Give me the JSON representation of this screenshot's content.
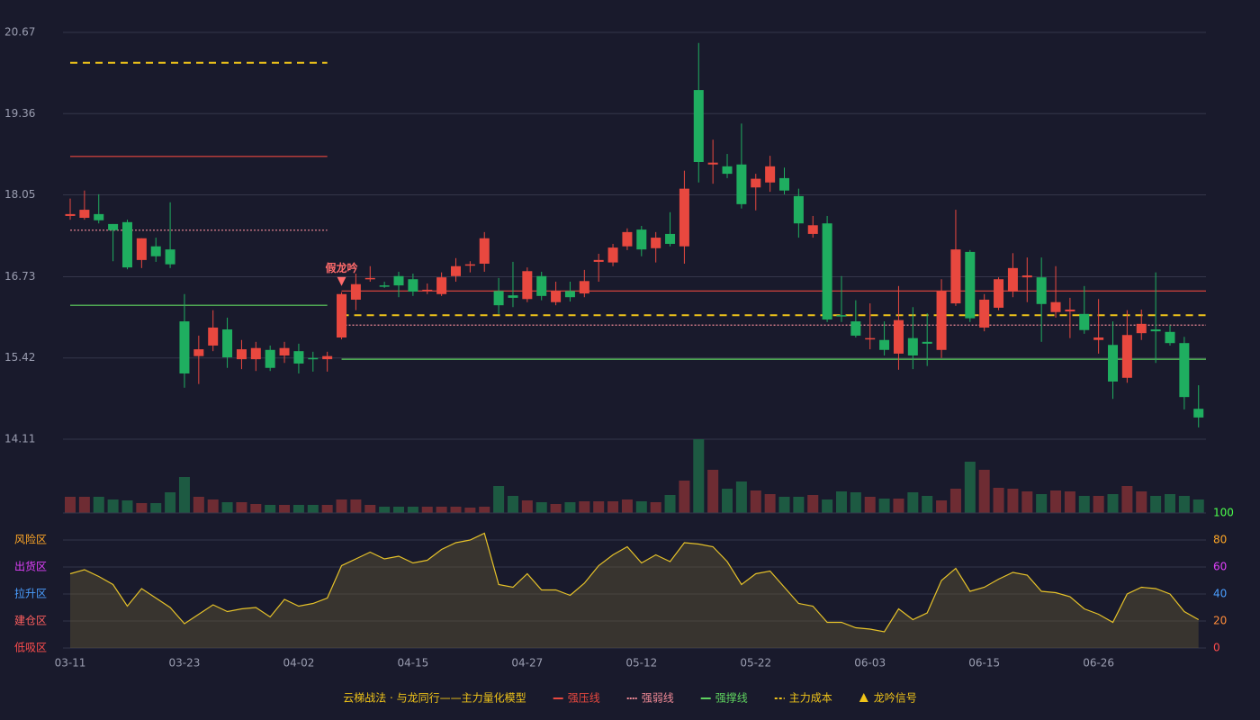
{
  "chart_data": [
    {
      "type": "candlestick",
      "categories": [
        "03-11",
        null,
        null,
        null,
        null,
        null,
        null,
        null,
        "03-23",
        null,
        null,
        null,
        null,
        null,
        null,
        null,
        "04-02",
        null,
        null,
        null,
        null,
        null,
        null,
        null,
        "04-15",
        null,
        null,
        null,
        null,
        null,
        null,
        null,
        "04-27",
        null,
        null,
        null,
        null,
        null,
        null,
        null,
        "05-12",
        null,
        null,
        null,
        null,
        null,
        null,
        null,
        "05-22",
        null,
        null,
        null,
        null,
        null,
        null,
        null,
        "06-03",
        null,
        null,
        null,
        null,
        null,
        null,
        null,
        "06-15",
        null,
        null,
        null,
        null,
        null,
        null,
        null,
        "06-26",
        null,
        null,
        null,
        null,
        null,
        null,
        null
      ],
      "open": [
        17.71,
        17.68,
        17.74,
        17.58,
        17.61,
        17.0,
        17.22,
        17.17,
        16.01,
        15.45,
        15.62,
        15.88,
        15.4,
        15.4,
        15.55,
        15.46,
        15.53,
        15.42,
        15.4,
        15.75,
        16.36,
        16.69,
        16.59,
        16.74,
        16.69,
        16.5,
        16.45,
        16.74,
        16.91,
        16.94,
        16.5,
        16.43,
        16.37,
        16.74,
        16.32,
        16.5,
        16.46,
        16.97,
        16.96,
        17.22,
        17.49,
        17.19,
        17.42,
        17.22,
        19.74,
        18.54,
        18.51,
        18.54,
        18.17,
        18.25,
        18.32,
        18.03,
        17.42,
        17.59,
        16.11,
        16.01,
        15.72,
        15.71,
        15.49,
        15.74,
        15.68,
        15.55,
        16.3,
        17.13,
        15.91,
        16.23,
        16.49,
        16.72,
        16.72,
        16.16,
        16.17,
        16.13,
        15.71,
        15.63,
        15.1,
        15.82,
        15.88,
        15.84,
        15.66,
        14.6
      ],
      "high": [
        17.99,
        18.12,
        18.06,
        17.58,
        17.65,
        17.35,
        17.36,
        17.93,
        16.45,
        15.78,
        16.19,
        16.07,
        15.71,
        15.68,
        15.62,
        15.68,
        15.65,
        15.52,
        15.52,
        16.48,
        16.78,
        16.9,
        16.65,
        16.81,
        16.78,
        16.62,
        16.8,
        17.03,
        16.98,
        17.45,
        16.71,
        16.97,
        16.88,
        16.81,
        16.65,
        16.65,
        16.84,
        17.1,
        17.26,
        17.51,
        17.55,
        17.45,
        17.77,
        18.44,
        20.5,
        18.94,
        18.71,
        19.2,
        18.39,
        18.68,
        18.49,
        18.15,
        17.71,
        17.71,
        16.74,
        16.35,
        16.3,
        16.01,
        16.58,
        16.24,
        16.14,
        16.69,
        17.81,
        17.16,
        16.45,
        16.72,
        17.11,
        17.04,
        17.04,
        16.9,
        16.39,
        16.58,
        16.37,
        16.01,
        16.19,
        16.2,
        16.8,
        15.95,
        15.76,
        14.98
      ],
      "low": [
        17.65,
        17.65,
        17.59,
        16.98,
        16.85,
        16.87,
        16.97,
        16.87,
        14.94,
        15.0,
        15.53,
        15.26,
        15.24,
        15.21,
        15.21,
        15.34,
        15.17,
        15.2,
        15.2,
        15.72,
        16.19,
        16.65,
        16.55,
        16.4,
        16.42,
        16.45,
        16.42,
        16.65,
        16.8,
        16.81,
        16.13,
        16.24,
        16.32,
        16.35,
        16.27,
        16.33,
        16.4,
        16.65,
        16.9,
        17.16,
        17.06,
        16.96,
        17.22,
        16.94,
        18.25,
        18.23,
        18.32,
        17.83,
        17.8,
        18.1,
        18.06,
        17.36,
        17.36,
        16.0,
        16.0,
        15.75,
        15.56,
        15.46,
        15.23,
        15.24,
        15.29,
        15.42,
        16.26,
        16.0,
        15.85,
        16.19,
        16.4,
        16.32,
        15.68,
        16.07,
        15.74,
        15.81,
        15.49,
        14.76,
        15.02,
        15.71,
        15.34,
        15.62,
        14.59,
        14.3
      ],
      "close": [
        17.74,
        17.81,
        17.64,
        17.48,
        16.88,
        17.35,
        17.06,
        16.93,
        15.17,
        15.56,
        15.91,
        15.43,
        15.56,
        15.58,
        15.26,
        15.58,
        15.33,
        15.4,
        15.45,
        16.45,
        16.61,
        16.71,
        16.58,
        16.59,
        16.49,
        16.52,
        16.72,
        16.9,
        16.93,
        17.35,
        16.27,
        16.39,
        16.82,
        16.42,
        16.5,
        16.4,
        16.66,
        17.0,
        17.2,
        17.45,
        17.17,
        17.36,
        17.26,
        18.15,
        18.58,
        18.57,
        18.39,
        17.9,
        18.31,
        18.51,
        18.12,
        17.59,
        17.56,
        16.04,
        16.1,
        15.78,
        15.74,
        15.55,
        16.03,
        15.46,
        15.65,
        16.5,
        17.17,
        16.06,
        16.36,
        16.69,
        16.87,
        16.75,
        16.29,
        16.32,
        16.2,
        15.87,
        15.75,
        15.04,
        15.79,
        15.97,
        15.85,
        15.66,
        14.79,
        14.46
      ],
      "up_color": "#e8483f",
      "down_color": "#1fae60",
      "ylim": [
        14.11,
        20.67
      ],
      "yticks": [
        14.11,
        15.42,
        16.73,
        18.05,
        19.36,
        20.67
      ],
      "grid": true,
      "levels": [
        {
          "name": "强压线",
          "color": "#e8483f",
          "dash": "solid",
          "values": [
            18.67,
            18.67,
            18.67,
            18.67,
            18.67,
            18.67,
            18.67,
            18.67,
            18.67,
            18.67,
            18.67,
            18.67,
            18.67,
            18.67,
            18.67,
            18.67,
            18.67,
            18.67,
            18.67,
            16.5,
            16.5,
            16.5,
            16.5,
            16.5,
            16.5,
            16.5,
            16.5,
            16.5,
            16.5,
            16.5,
            16.5,
            16.5,
            16.5,
            16.5,
            16.5,
            16.5,
            16.5,
            16.5,
            16.5,
            16.5,
            16.5,
            16.5,
            16.5,
            16.5,
            16.5,
            16.5,
            16.5,
            16.5,
            16.5,
            16.5,
            16.5,
            16.5,
            16.5,
            16.5,
            16.5,
            16.5,
            16.5,
            16.5,
            16.5,
            16.5,
            16.5,
            16.5,
            16.5,
            16.5,
            16.5,
            16.5,
            16.5,
            16.5,
            16.5,
            16.5,
            16.5,
            16.5,
            16.5,
            16.5,
            16.5,
            16.5,
            16.5,
            16.5,
            16.5,
            16.5
          ]
        },
        {
          "name": "强弱线",
          "color": "#f08a96",
          "dash": "dotted",
          "values": [
            17.48,
            17.48,
            17.48,
            17.48,
            17.48,
            17.48,
            17.48,
            17.48,
            17.48,
            17.48,
            17.48,
            17.48,
            17.48,
            17.48,
            17.48,
            17.48,
            17.48,
            17.48,
            17.48,
            15.95,
            15.95,
            15.95,
            15.95,
            15.95,
            15.95,
            15.95,
            15.95,
            15.95,
            15.95,
            15.95,
            15.95,
            15.95,
            15.95,
            15.95,
            15.95,
            15.95,
            15.95,
            15.95,
            15.95,
            15.95,
            15.95,
            15.95,
            15.95,
            15.95,
            15.95,
            15.95,
            15.95,
            15.95,
            15.95,
            15.95,
            15.95,
            15.95,
            15.95,
            15.95,
            15.95,
            15.95,
            15.95,
            15.95,
            15.95,
            15.95,
            15.95,
            15.95,
            15.95,
            15.95,
            15.95,
            15.95,
            15.95,
            15.95,
            15.95,
            15.95,
            15.95,
            15.95,
            15.95,
            15.95,
            15.95,
            15.95,
            15.95,
            15.95,
            15.95,
            15.95
          ]
        },
        {
          "name": "强撑线",
          "color": "#5fd35f",
          "dash": "solid",
          "values": [
            16.27,
            16.27,
            16.27,
            16.27,
            16.27,
            16.27,
            16.27,
            16.27,
            16.27,
            16.27,
            16.27,
            16.27,
            16.27,
            16.27,
            16.27,
            16.27,
            16.27,
            16.27,
            16.27,
            15.4,
            15.4,
            15.4,
            15.4,
            15.4,
            15.4,
            15.4,
            15.4,
            15.4,
            15.4,
            15.4,
            15.4,
            15.4,
            15.4,
            15.4,
            15.4,
            15.4,
            15.4,
            15.4,
            15.4,
            15.4,
            15.4,
            15.4,
            15.4,
            15.4,
            15.4,
            15.4,
            15.4,
            15.4,
            15.4,
            15.4,
            15.4,
            15.4,
            15.4,
            15.4,
            15.4,
            15.4,
            15.4,
            15.4,
            15.4,
            15.4,
            15.4,
            15.4,
            15.4,
            15.4,
            15.4,
            15.4,
            15.4,
            15.4,
            15.4,
            15.4,
            15.4,
            15.4,
            15.4,
            15.4,
            15.4,
            15.4,
            15.4,
            15.4,
            15.4,
            15.4
          ]
        },
        {
          "name": "主力成本",
          "color": "#f0c419",
          "dash": "dashed",
          "values": [
            20.18,
            20.18,
            20.18,
            20.18,
            20.18,
            20.18,
            20.18,
            20.18,
            20.18,
            20.18,
            20.18,
            20.18,
            20.18,
            20.18,
            20.18,
            20.18,
            20.18,
            20.18,
            20.18,
            16.11,
            16.11,
            16.11,
            16.11,
            16.11,
            16.11,
            16.11,
            16.11,
            16.11,
            16.11,
            16.11,
            16.11,
            16.11,
            16.11,
            16.11,
            16.11,
            16.11,
            16.11,
            16.11,
            16.11,
            16.11,
            16.11,
            16.11,
            16.11,
            16.11,
            16.11,
            16.11,
            16.11,
            16.11,
            16.11,
            16.11,
            16.11,
            16.11,
            16.11,
            16.11,
            16.11,
            16.11,
            16.11,
            16.11,
            16.11,
            16.11,
            16.11,
            16.11,
            16.11,
            16.11,
            16.11,
            16.11,
            16.11,
            16.11,
            16.11,
            16.11,
            16.11,
            16.11,
            16.11,
            16.11,
            16.11,
            16.11,
            16.11,
            16.11,
            16.11,
            16.11
          ]
        }
      ],
      "signal_labels": [
        null,
        null,
        null,
        null,
        null,
        null,
        null,
        null,
        null,
        null,
        null,
        null,
        null,
        null,
        null,
        null,
        null,
        null,
        null,
        "假龙吟",
        null,
        null,
        null,
        null,
        null,
        null,
        null,
        null,
        null,
        null,
        null,
        null,
        null,
        null,
        null,
        null,
        null,
        null,
        null,
        null,
        null,
        null,
        null,
        null,
        null,
        null,
        null,
        null,
        null,
        null,
        null,
        null,
        null,
        null,
        null,
        null,
        null,
        null,
        null,
        null,
        null,
        null,
        null,
        null,
        null,
        null,
        null,
        null,
        null,
        null,
        null,
        null,
        null,
        null,
        null,
        null,
        null,
        null,
        null,
        null
      ],
      "signal_color": "#ff6b6b",
      "legend_title": "云梯战法 · 与龙同行——主力量化模型",
      "signal_name": "龙吟信号",
      "signal_legend_color": "#f0c419"
    },
    {
      "type": "bar",
      "values": [
        18,
        18,
        18,
        15,
        14,
        11,
        11,
        23,
        40,
        18,
        15,
        12,
        12,
        10,
        9,
        9,
        9,
        9,
        9,
        15,
        15,
        9,
        7,
        7,
        7,
        7,
        7,
        7,
        6,
        7,
        30,
        19,
        14,
        12,
        10,
        12,
        13,
        13,
        13,
        15,
        13,
        12,
        20,
        36,
        82,
        48,
        27,
        35,
        25,
        21,
        18,
        18,
        20,
        15,
        24,
        23,
        18,
        16,
        16,
        23,
        19,
        14,
        27,
        57,
        48,
        28,
        27,
        24,
        21,
        25,
        24,
        19,
        19,
        21,
        30,
        24,
        19,
        21,
        19,
        15
      ],
      "up_color": "#6e2c33",
      "down_color": "#1d5a42"
    },
    {
      "type": "line",
      "values": [
        55,
        58,
        53,
        47,
        31,
        44,
        37,
        30,
        18,
        25,
        32,
        27,
        29,
        30,
        23,
        36,
        31,
        33,
        37,
        61,
        66,
        71,
        66,
        68,
        63,
        65,
        73,
        78,
        80,
        85,
        47,
        45,
        55,
        43,
        43,
        39,
        48,
        61,
        69,
        75,
        63,
        69,
        64,
        78,
        77,
        75,
        64,
        47,
        55,
        57,
        45,
        33,
        31,
        19,
        19,
        15,
        14,
        12,
        29,
        21,
        26,
        50,
        59,
        42,
        45,
        51,
        56,
        54,
        42,
        41,
        38,
        29,
        25,
        19,
        40,
        45,
        44,
        40,
        27,
        21
      ],
      "color": "#e6c229",
      "fill": "rgba(95,85,50,0.45)",
      "ylim": [
        0,
        100
      ],
      "yticks": [
        0,
        20,
        40,
        60,
        80,
        100
      ],
      "ytick_colors": [
        "#ff4d4d",
        "#ff8c3a",
        "#4a9eff",
        "#e040fb",
        "#ffa726",
        "#4cff4c"
      ],
      "zones": [
        {
          "label": "低吸区",
          "value": 0,
          "color": "#ff4d4d"
        },
        {
          "label": "建仓区",
          "value": 20,
          "color": "#ff5e5e"
        },
        {
          "label": "拉升区",
          "value": 40,
          "color": "#4a9eff"
        },
        {
          "label": "出货区",
          "value": 60,
          "color": "#e040fb"
        },
        {
          "label": "风险区",
          "value": 80,
          "color": "#ffa726"
        }
      ],
      "grid": true
    }
  ]
}
